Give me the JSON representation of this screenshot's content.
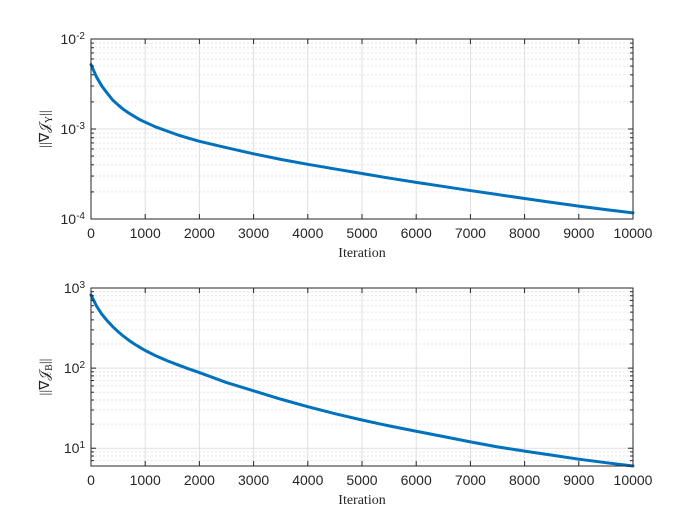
{
  "chart_data": [
    {
      "type": "line",
      "ylabel": "||∇𝒥Y||",
      "ylabel_main": "||∇𝒥",
      "ylabel_sub": "Y",
      "ylabel_end": "||",
      "xlabel": "Iteration",
      "xscale": "linear",
      "yscale": "log",
      "xlim": [
        0,
        10000
      ],
      "ylim": [
        0.0001,
        0.01
      ],
      "grid": true,
      "minor_grid": true,
      "color": "#0072BD",
      "xticks": [
        {
          "value": 0,
          "label": "0"
        },
        {
          "value": 1000,
          "label": "1000"
        },
        {
          "value": 2000,
          "label": "2000"
        },
        {
          "value": 3000,
          "label": "3000"
        },
        {
          "value": 4000,
          "label": "4000"
        },
        {
          "value": 5000,
          "label": "5000"
        },
        {
          "value": 6000,
          "label": "6000"
        },
        {
          "value": 7000,
          "label": "7000"
        },
        {
          "value": 8000,
          "label": "8000"
        },
        {
          "value": 9000,
          "label": "9000"
        },
        {
          "value": 10000,
          "label": "10000"
        }
      ],
      "yticks": [
        {
          "value": 0.0001,
          "base": "10",
          "exp": "-4"
        },
        {
          "value": 0.001,
          "base": "10",
          "exp": "-3"
        },
        {
          "value": 0.01,
          "base": "10",
          "exp": "-2"
        }
      ],
      "series": [
        {
          "x": [
            0,
            100,
            200,
            300,
            400,
            500,
            600,
            700,
            800,
            900,
            1000,
            1200,
            1400,
            1600,
            1800,
            2000,
            2500,
            3000,
            3500,
            4000,
            4500,
            5000,
            5500,
            6000,
            6500,
            7000,
            7500,
            8000,
            8500,
            9000,
            9500,
            10000
          ],
          "y": [
            0.0052,
            0.0038,
            0.003,
            0.0025,
            0.0021,
            0.00185,
            0.00165,
            0.0015,
            0.00138,
            0.00127,
            0.00119,
            0.00105,
            0.00095,
            0.00086,
            0.00079,
            0.00073,
            0.00062,
            0.00053,
            0.00046,
            0.000405,
            0.00036,
            0.00032,
            0.000285,
            0.000255,
            0.00023,
            0.000207,
            0.000187,
            0.000169,
            0.000153,
            0.000139,
            0.000127,
            0.000117
          ]
        }
      ]
    },
    {
      "type": "line",
      "ylabel": "||∇𝒥B||",
      "ylabel_main": "||∇𝒥",
      "ylabel_sub": "B",
      "ylabel_end": "||",
      "xlabel": "Iteration",
      "xscale": "linear",
      "yscale": "log",
      "xlim": [
        0,
        10000
      ],
      "ylim": [
        6,
        1000
      ],
      "grid": true,
      "minor_grid": true,
      "color": "#0072BD",
      "xticks": [
        {
          "value": 0,
          "label": "0"
        },
        {
          "value": 1000,
          "label": "1000"
        },
        {
          "value": 2000,
          "label": "2000"
        },
        {
          "value": 3000,
          "label": "3000"
        },
        {
          "value": 4000,
          "label": "4000"
        },
        {
          "value": 5000,
          "label": "5000"
        },
        {
          "value": 6000,
          "label": "6000"
        },
        {
          "value": 7000,
          "label": "7000"
        },
        {
          "value": 8000,
          "label": "8000"
        },
        {
          "value": 9000,
          "label": "9000"
        },
        {
          "value": 10000,
          "label": "10000"
        }
      ],
      "yticks": [
        {
          "value": 10,
          "base": "10",
          "exp": "1"
        },
        {
          "value": 100,
          "base": "10",
          "exp": "2"
        },
        {
          "value": 1000,
          "base": "10",
          "exp": "3"
        }
      ],
      "series": [
        {
          "x": [
            0,
            100,
            200,
            300,
            400,
            500,
            600,
            700,
            800,
            900,
            1000,
            1200,
            1400,
            1600,
            1800,
            2000,
            2500,
            3000,
            3500,
            4000,
            4500,
            5000,
            5500,
            6000,
            6500,
            7000,
            7500,
            8000,
            8500,
            9000,
            9500,
            10000
          ],
          "y": [
            820,
            600,
            470,
            390,
            330,
            285,
            250,
            222,
            200,
            182,
            166,
            142,
            124,
            110,
            98,
            88,
            66,
            52,
            41,
            33,
            27,
            22.5,
            19,
            16.3,
            14,
            12,
            10.4,
            9.2,
            8.2,
            7.3,
            6.6,
            6
          ]
        }
      ]
    }
  ]
}
